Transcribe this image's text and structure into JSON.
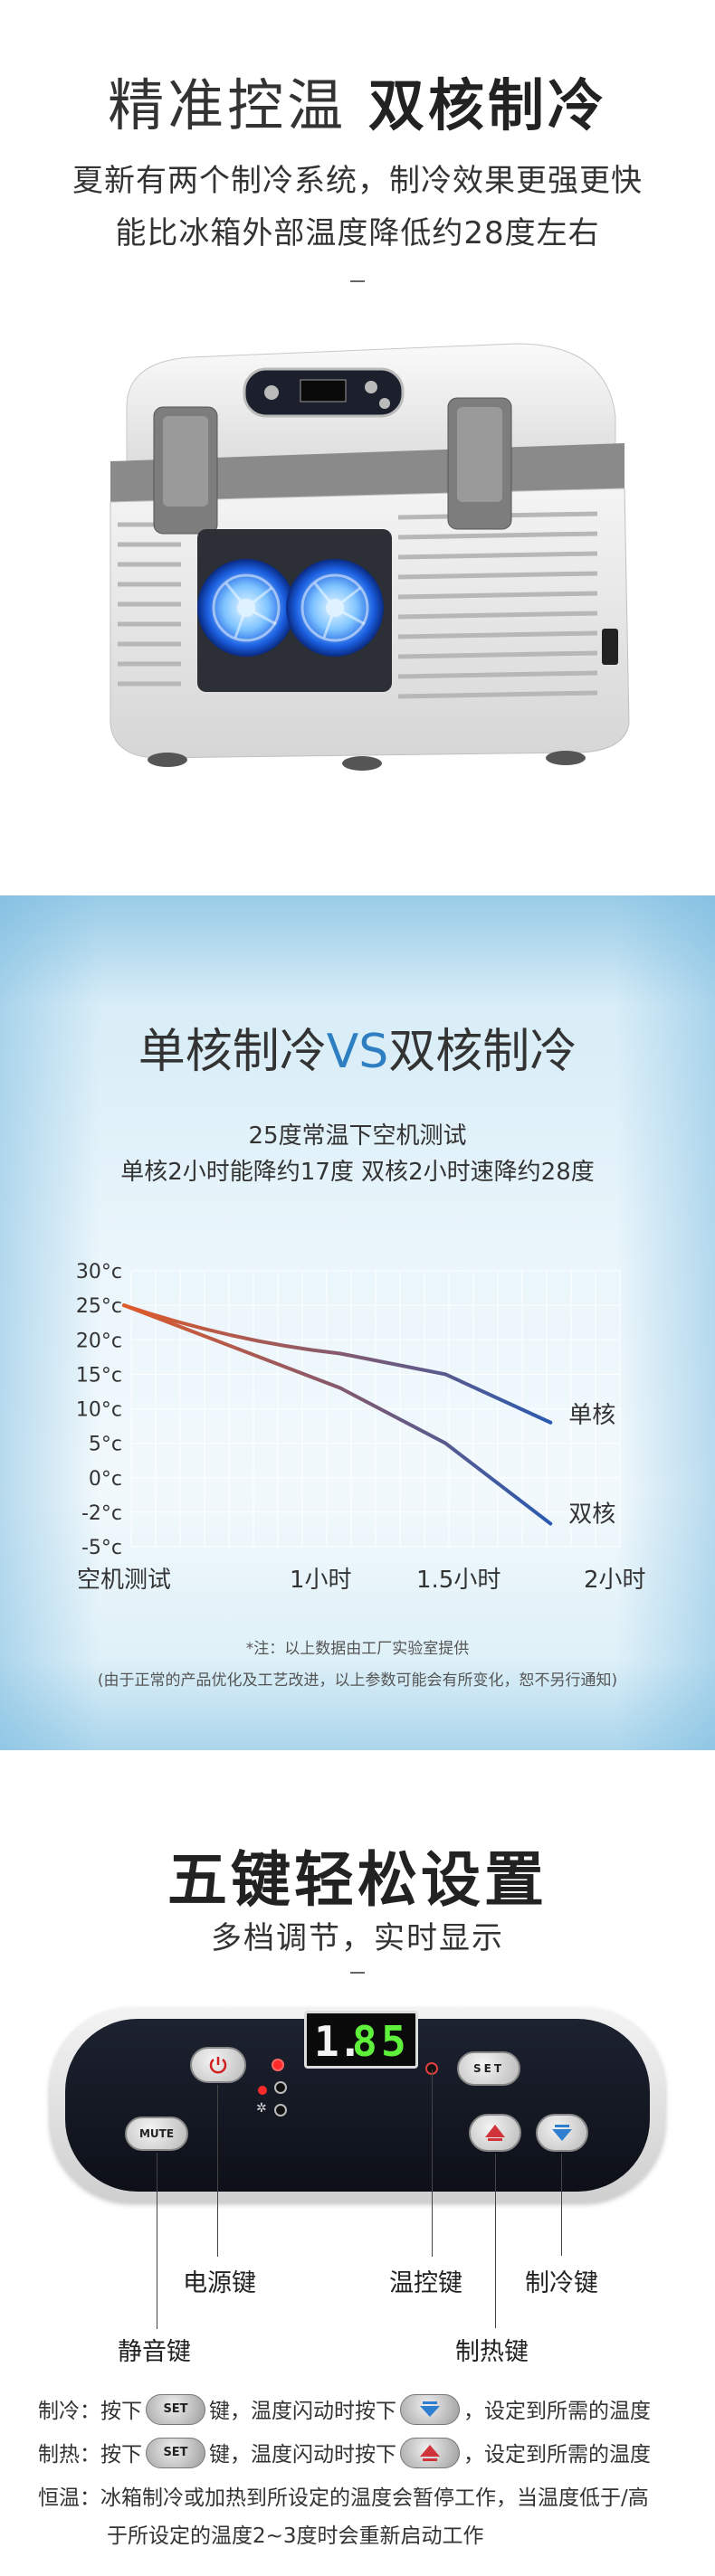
{
  "section1": {
    "title_light": "精准控温",
    "title_bold": "双核制冷",
    "subtitle_line1": "夏新有两个制冷系统，制冷效果更强更快",
    "subtitle_line2": "能比冰箱外部温度降低约28度左右"
  },
  "section2": {
    "title_part1": "单核制冷",
    "title_vs": "VS",
    "title_part2": "双核制冷",
    "test_line1": "25度常温下空机测试",
    "test_line2": "单核2小时能降约17度  双核2小时速降约28度",
    "note_line1": "*注：以上数据由工厂实验室提供",
    "note_line2": "(由于正常的产品优化及工艺改进，以上参数可能会有所变化，恕不另行通知)"
  },
  "chart_data": {
    "type": "line",
    "categories": [
      "空机测试",
      "1小时",
      "1.5小时",
      "2小时"
    ],
    "y_ticks": [
      "30°c",
      "25°c",
      "20°c",
      "15°c",
      "10°c",
      "5°c",
      "0°c",
      "-2°c",
      "-5°c"
    ],
    "y_values": [
      30,
      25,
      20,
      15,
      10,
      5,
      0,
      -2,
      -5
    ],
    "series": [
      {
        "name": "单核",
        "color": "#e05a2a",
        "points": [
          [
            0,
            25
          ],
          [
            1,
            18
          ],
          [
            1.5,
            15
          ],
          [
            2,
            8
          ]
        ]
      },
      {
        "name": "双核",
        "color": "#2a5ab0",
        "points": [
          [
            0,
            25
          ],
          [
            1,
            13
          ],
          [
            1.5,
            5
          ],
          [
            2,
            -3
          ]
        ]
      }
    ],
    "grid": true
  },
  "section3": {
    "title": "五键轻松设置",
    "subtitle": "多档调节，实时显示",
    "display_digits": [
      "1",
      ".",
      "8",
      "5"
    ],
    "button_mute": "MUTE",
    "button_set": "SET",
    "callouts": {
      "power": "电源键",
      "mute": "静音键",
      "temp": "温控键",
      "heat": "制热键",
      "cool": "制冷键"
    },
    "instructions": {
      "cool_prefix": "制冷：按下",
      "cool_mid": "键，温度闪动时按下",
      "cool_suffix": "，设定到所需的温度",
      "heat_prefix": "制热：按下",
      "heat_mid": "键，温度闪动时按下",
      "heat_suffix": "，设定到所需的温度",
      "const_line1": "恒温：冰箱制冷或加热到所设定的温度会暂停工作，当温度低于/高",
      "const_line2": "于所设定的温度2~3度时会重新启动工作",
      "set_label": "SET"
    },
    "colors": {
      "heat_arrow": "#d0333a",
      "cool_arrow": "#2f7fd0"
    }
  }
}
